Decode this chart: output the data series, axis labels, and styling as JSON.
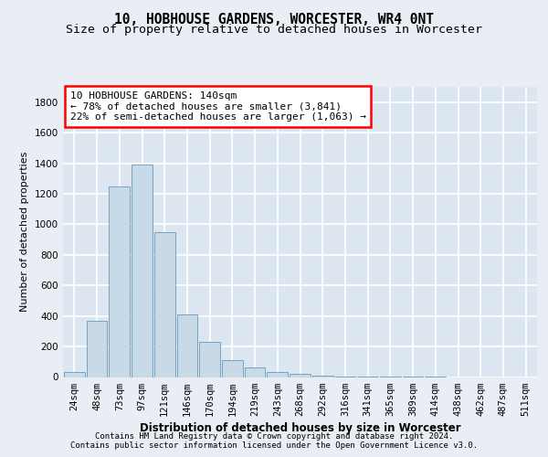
{
  "title1": "10, HOBHOUSE GARDENS, WORCESTER, WR4 0NT",
  "title2": "Size of property relative to detached houses in Worcester",
  "xlabel": "Distribution of detached houses by size in Worcester",
  "ylabel": "Number of detached properties",
  "categories": [
    "24sqm",
    "48sqm",
    "73sqm",
    "97sqm",
    "121sqm",
    "146sqm",
    "170sqm",
    "194sqm",
    "219sqm",
    "243sqm",
    "268sqm",
    "292sqm",
    "316sqm",
    "341sqm",
    "365sqm",
    "389sqm",
    "414sqm",
    "438sqm",
    "462sqm",
    "487sqm",
    "511sqm"
  ],
  "values": [
    30,
    370,
    1250,
    1390,
    950,
    410,
    230,
    110,
    60,
    35,
    20,
    10,
    5,
    3,
    2,
    1,
    1,
    0,
    0,
    0,
    0
  ],
  "bar_color": "#c8d9e8",
  "bar_edge_color": "#6699bb",
  "annotation_box_text": "10 HOBHOUSE GARDENS: 140sqm\n← 78% of detached houses are smaller (3,841)\n22% of semi-detached houses are larger (1,063) →",
  "ylim": [
    0,
    1900
  ],
  "yticks": [
    0,
    200,
    400,
    600,
    800,
    1000,
    1200,
    1400,
    1600,
    1800
  ],
  "background_color": "#e8eef4",
  "plot_bg_color": "#dce6f0",
  "grid_color": "#ffffff",
  "footer_line1": "Contains HM Land Registry data © Crown copyright and database right 2024.",
  "footer_line2": "Contains public sector information licensed under the Open Government Licence v3.0.",
  "title1_fontsize": 10.5,
  "title2_fontsize": 9.5,
  "xlabel_fontsize": 8.5,
  "ylabel_fontsize": 8,
  "tick_fontsize": 7.5,
  "annotation_fontsize": 8,
  "footer_fontsize": 6.5
}
